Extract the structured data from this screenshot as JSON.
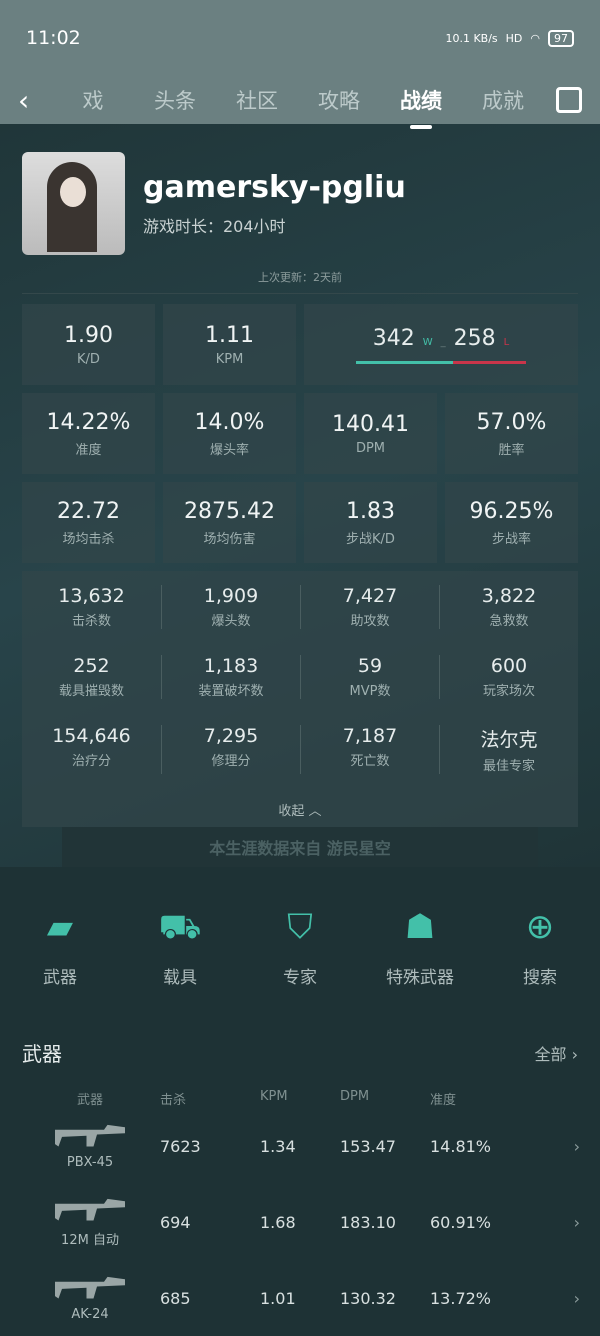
{
  "status": {
    "time": "11:02",
    "net": "10.1 KB/s",
    "signal": "HD",
    "battery": "97"
  },
  "nav": {
    "tabs": [
      "戏",
      "头条",
      "社区",
      "攻略",
      "战绩",
      "成就"
    ],
    "active": 4
  },
  "profile": {
    "name": "gamersky-pgliu",
    "playtime": "游戏时长：204小时",
    "updated": "上次更新：2天前"
  },
  "stats": {
    "kd": {
      "v": "1.90",
      "l": "K/D"
    },
    "kpm": {
      "v": "1.11",
      "l": "KPM"
    },
    "wins": "342",
    "win_label": "W",
    "sep": "_",
    "losses": "258",
    "loss_label": "L",
    "win_fraction": 0.57,
    "row2": [
      {
        "v": "14.22%",
        "l": "准度"
      },
      {
        "v": "14.0%",
        "l": "爆头率"
      },
      {
        "v": "140.41",
        "l": "DPM"
      },
      {
        "v": "57.0%",
        "l": "胜率"
      }
    ],
    "row3": [
      {
        "v": "22.72",
        "l": "场均击杀"
      },
      {
        "v": "2875.42",
        "l": "场均伤害"
      },
      {
        "v": "1.83",
        "l": "步战K/D"
      },
      {
        "v": "96.25%",
        "l": "步战率"
      }
    ]
  },
  "details": [
    [
      {
        "v": "13,632",
        "l": "击杀数"
      },
      {
        "v": "1,909",
        "l": "爆头数"
      },
      {
        "v": "7,427",
        "l": "助攻数"
      },
      {
        "v": "3,822",
        "l": "急救数"
      }
    ],
    [
      {
        "v": "252",
        "l": "载具摧毁数"
      },
      {
        "v": "1,183",
        "l": "装置破坏数"
      },
      {
        "v": "59",
        "l": "MVP数"
      },
      {
        "v": "600",
        "l": "玩家场次"
      }
    ],
    [
      {
        "v": "154,646",
        "l": "治疗分"
      },
      {
        "v": "7,295",
        "l": "修理分"
      },
      {
        "v": "7,187",
        "l": "死亡数"
      },
      {
        "v": "法尔克",
        "l": "最佳专家"
      }
    ]
  ],
  "collapse": "收起 ︿",
  "source": "本生涯数据来自 游民星空",
  "categories": [
    {
      "l": "武器",
      "icon": "pistol-icon"
    },
    {
      "l": "载具",
      "icon": "vehicle-icon"
    },
    {
      "l": "专家",
      "icon": "specialist-badge-icon"
    },
    {
      "l": "特殊武器",
      "icon": "grenade-icon"
    },
    {
      "l": "搜索",
      "icon": "crosshair-icon"
    }
  ],
  "weapons": {
    "title": "武器",
    "all": "全部 ›",
    "headers": [
      "武器",
      "击杀",
      "KPM",
      "DPM",
      "准度"
    ],
    "rows": [
      [
        "PBX-45",
        "7623",
        "1.34",
        "153.47",
        "14.81%"
      ],
      [
        "12M 自动",
        "694",
        "1.68",
        "183.10",
        "60.91%"
      ],
      [
        "AK-24",
        "685",
        "1.01",
        "130.32",
        "13.72%"
      ]
    ]
  },
  "colors": {
    "accent": "#43c0a9",
    "loss": "#c9354a"
  }
}
